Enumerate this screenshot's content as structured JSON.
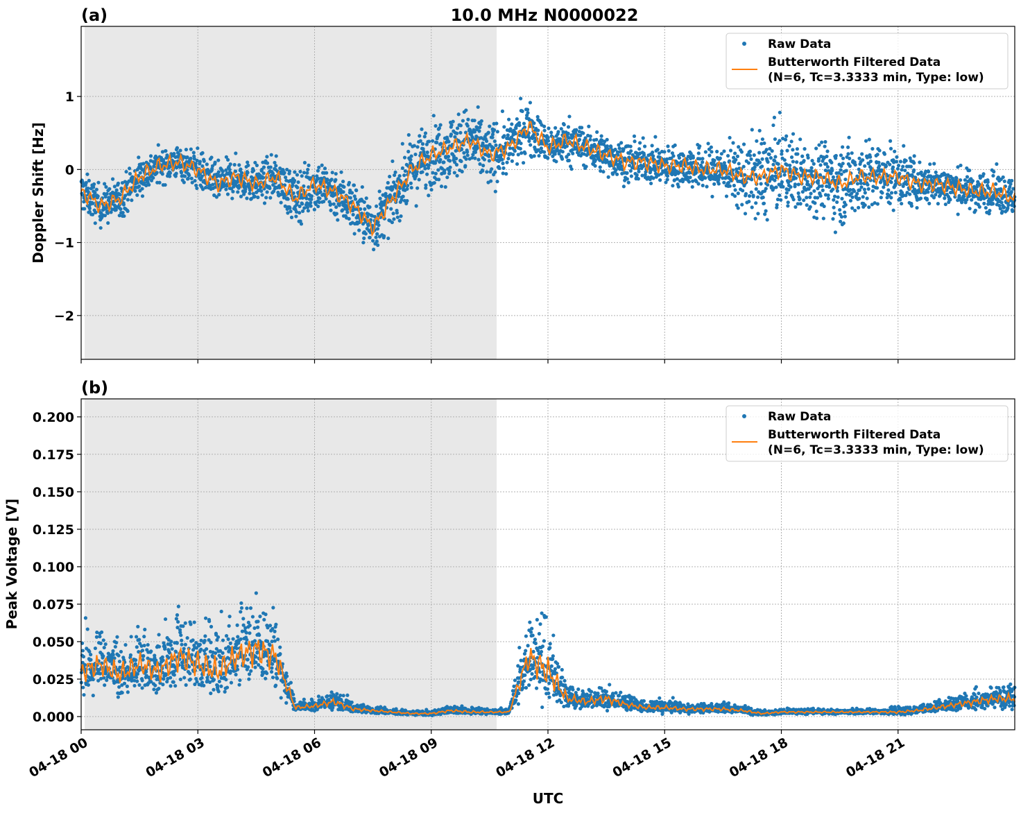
{
  "chart_data": [
    {
      "type": "scatter",
      "panel_label": "(a)",
      "title": "10.0 MHz N0000022",
      "xlabel": "",
      "ylabel": "Doppler Shift [Hz]",
      "xlim_hours_utc": [
        0,
        24
      ],
      "ylim": [
        -2.6,
        1.96
      ],
      "yticks": [
        {
          "v": 1,
          "label": "1"
        },
        {
          "v": 0,
          "label": "0"
        },
        {
          "v": -1,
          "label": "−1"
        },
        {
          "v": -2,
          "label": "−2"
        }
      ],
      "grid": true,
      "shaded_interval_hours_utc": [
        0.09,
        10.68
      ],
      "legend": {
        "placement": "top-right",
        "entries": [
          "Raw Data",
          "Butterworth Filtered Data",
          "(N=6, Tc=3.3333 min, Type: low)"
        ]
      },
      "time_hours_utc": [
        0,
        0.5,
        1,
        1.5,
        2,
        2.5,
        3,
        3.5,
        4,
        4.5,
        5,
        5.5,
        6,
        6.5,
        7,
        7.5,
        8,
        8.5,
        9,
        9.5,
        10,
        10.5,
        11,
        11.5,
        12,
        12.5,
        13,
        13.5,
        14,
        14.5,
        15,
        15.5,
        16,
        16.5,
        17,
        17.5,
        18,
        18.5,
        19,
        19.5,
        20,
        20.5,
        21,
        21.5,
        22,
        22.5,
        23,
        23.5,
        24
      ],
      "filtered": [
        -0.3,
        -0.5,
        -0.4,
        -0.1,
        0.05,
        0.1,
        0.0,
        -0.2,
        -0.1,
        -0.2,
        -0.1,
        -0.4,
        -0.2,
        -0.3,
        -0.5,
        -0.8,
        -0.4,
        0.0,
        0.2,
        0.3,
        0.4,
        0.2,
        0.3,
        0.6,
        0.3,
        0.4,
        0.3,
        0.2,
        0.1,
        0.1,
        0.05,
        0.05,
        0.0,
        0.0,
        -0.1,
        -0.1,
        0.0,
        -0.1,
        -0.1,
        -0.2,
        -0.1,
        -0.1,
        -0.1,
        -0.2,
        -0.2,
        -0.25,
        -0.3,
        -0.3,
        -0.4
      ],
      "raw_spread": [
        0.3,
        0.3,
        0.3,
        0.3,
        0.25,
        0.25,
        0.3,
        0.3,
        0.3,
        0.3,
        0.3,
        0.4,
        0.4,
        0.4,
        0.4,
        0.4,
        0.4,
        0.5,
        0.5,
        0.5,
        0.5,
        0.5,
        0.4,
        0.4,
        0.3,
        0.35,
        0.3,
        0.3,
        0.3,
        0.3,
        0.3,
        0.3,
        0.35,
        0.4,
        0.5,
        0.7,
        0.6,
        0.55,
        0.55,
        0.6,
        0.6,
        0.5,
        0.45,
        0.35,
        0.3,
        0.3,
        0.3,
        0.3,
        0.3
      ],
      "colors": {
        "raw": "#1f77b4",
        "filtered": "#ff7f0e",
        "shade": "#e8e8e8"
      }
    },
    {
      "type": "scatter",
      "panel_label": "(b)",
      "title": "",
      "xlabel": "UTC",
      "ylabel": "Peak Voltage [V]",
      "xlim_hours_utc": [
        0,
        24
      ],
      "ylim": [
        -0.0088,
        0.212
      ],
      "yticks": [
        {
          "v": 0.2,
          "label": "0.200"
        },
        {
          "v": 0.175,
          "label": "0.175"
        },
        {
          "v": 0.15,
          "label": "0.150"
        },
        {
          "v": 0.125,
          "label": "0.125"
        },
        {
          "v": 0.1,
          "label": "0.100"
        },
        {
          "v": 0.075,
          "label": "0.075"
        },
        {
          "v": 0.05,
          "label": "0.050"
        },
        {
          "v": 0.025,
          "label": "0.025"
        },
        {
          "v": 0,
          "label": "0.000"
        }
      ],
      "xticks": [
        {
          "v": 0,
          "label": "04-18 00"
        },
        {
          "v": 3,
          "label": "04-18 03"
        },
        {
          "v": 6,
          "label": "04-18 06"
        },
        {
          "v": 9,
          "label": "04-18 09"
        },
        {
          "v": 12,
          "label": "04-18 12"
        },
        {
          "v": 15,
          "label": "04-18 15"
        },
        {
          "v": 18,
          "label": "04-18 18"
        },
        {
          "v": 21,
          "label": "04-18 21"
        }
      ],
      "grid": true,
      "shaded_interval_hours_utc": [
        0.09,
        10.68
      ],
      "legend": {
        "placement": "top-right",
        "entries": [
          "Raw Data",
          "Butterworth Filtered Data",
          "(N=6, Tc=3.3333 min, Type: low)"
        ]
      },
      "time_hours_utc": [
        0,
        0.5,
        1,
        1.5,
        2,
        2.5,
        3,
        3.5,
        4,
        4.5,
        5,
        5.5,
        6,
        6.5,
        7,
        7.5,
        8,
        8.5,
        9,
        9.5,
        10,
        10.5,
        11,
        11.5,
        12,
        12.5,
        13,
        13.5,
        14,
        14.5,
        15,
        15.5,
        16,
        16.5,
        17,
        17.5,
        18,
        18.5,
        19,
        19.5,
        20,
        20.5,
        21,
        21.5,
        22,
        22.5,
        23,
        23.5,
        24
      ],
      "filtered": [
        0.03,
        0.035,
        0.028,
        0.035,
        0.03,
        0.04,
        0.035,
        0.03,
        0.04,
        0.045,
        0.04,
        0.006,
        0.007,
        0.01,
        0.005,
        0.004,
        0.003,
        0.002,
        0.002,
        0.004,
        0.003,
        0.003,
        0.003,
        0.04,
        0.03,
        0.012,
        0.01,
        0.012,
        0.008,
        0.006,
        0.006,
        0.005,
        0.005,
        0.005,
        0.004,
        0.002,
        0.003,
        0.003,
        0.003,
        0.003,
        0.003,
        0.003,
        0.003,
        0.004,
        0.006,
        0.008,
        0.01,
        0.012,
        0.012
      ],
      "raw_spread": [
        0.025,
        0.025,
        0.025,
        0.025,
        0.025,
        0.03,
        0.03,
        0.03,
        0.03,
        0.035,
        0.03,
        0.004,
        0.005,
        0.008,
        0.004,
        0.003,
        0.002,
        0.002,
        0.002,
        0.003,
        0.003,
        0.002,
        0.002,
        0.03,
        0.035,
        0.01,
        0.008,
        0.01,
        0.006,
        0.005,
        0.005,
        0.004,
        0.004,
        0.004,
        0.003,
        0.002,
        0.002,
        0.002,
        0.002,
        0.002,
        0.002,
        0.002,
        0.003,
        0.003,
        0.005,
        0.006,
        0.008,
        0.009,
        0.01
      ],
      "colors": {
        "raw": "#1f77b4",
        "filtered": "#ff7f0e",
        "shade": "#e8e8e8"
      }
    }
  ]
}
